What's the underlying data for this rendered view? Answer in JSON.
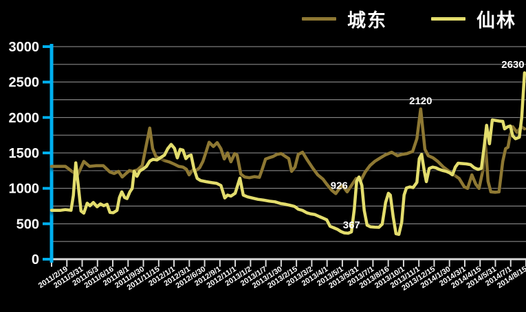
{
  "style": {
    "background": "#000000",
    "text_color": "#ffffff",
    "y_axis_color": "#00b0f0",
    "x_axis_color": "#d9d9d9",
    "gridline_color": "#9a9a9a"
  },
  "chart_data": {
    "type": "line",
    "title": "",
    "xlabel": "",
    "ylabel": "",
    "ylim": [
      0,
      3000
    ],
    "ytick_interval": 500,
    "grid_interval": 250,
    "grid": true,
    "legend_position": "top-right",
    "y_tick_labels": [
      "0",
      "500",
      "1000",
      "1500",
      "2000",
      "2500",
      "3000"
    ],
    "x_labels": [
      "2011/2/19",
      "2011/3/31",
      "2011/5/3",
      "2011/6/16",
      "2011/8/1",
      "2011/9/30",
      "2011/11/15",
      "2012/1/1",
      "2012/3/1",
      "2012/6/30",
      "2012/9/1",
      "2012/11/1",
      "2013/1/2",
      "2013/1/7",
      "2013/1/30",
      "2013/2/15",
      "2013/3/2",
      "2013/4/1",
      "2013/5/1",
      "2013/5/31",
      "2013/7/1",
      "2013/8/16",
      "2013/10/1",
      "2013/11/1",
      "2013/12/15",
      "2014/1/30",
      "2014/3/1",
      "2014/4/15",
      "2014/5/31",
      "2014/7/1",
      "2014/8/15"
    ],
    "series": [
      {
        "name": "城东",
        "color": "#8e7833",
        "points": [
          [
            0.0,
            1310
          ],
          [
            0.029,
            1310
          ],
          [
            0.043,
            1240
          ],
          [
            0.055,
            1190
          ],
          [
            0.068,
            1380
          ],
          [
            0.08,
            1310
          ],
          [
            0.094,
            1320
          ],
          [
            0.109,
            1320
          ],
          [
            0.123,
            1230
          ],
          [
            0.132,
            1210
          ],
          [
            0.141,
            1240
          ],
          [
            0.149,
            1160
          ],
          [
            0.157,
            1210
          ],
          [
            0.164,
            1250
          ],
          [
            0.171,
            1240
          ],
          [
            0.181,
            1260
          ],
          [
            0.191,
            1320
          ],
          [
            0.2,
            1620
          ],
          [
            0.207,
            1850
          ],
          [
            0.213,
            1560
          ],
          [
            0.22,
            1450
          ],
          [
            0.229,
            1420
          ],
          [
            0.239,
            1390
          ],
          [
            0.249,
            1370
          ],
          [
            0.259,
            1340
          ],
          [
            0.268,
            1310
          ],
          [
            0.277,
            1300
          ],
          [
            0.284,
            1270
          ],
          [
            0.29,
            1190
          ],
          [
            0.297,
            1255
          ],
          [
            0.304,
            1250
          ],
          [
            0.312,
            1290
          ],
          [
            0.319,
            1380
          ],
          [
            0.326,
            1520
          ],
          [
            0.332,
            1650
          ],
          [
            0.341,
            1590
          ],
          [
            0.349,
            1645
          ],
          [
            0.357,
            1560
          ],
          [
            0.364,
            1415
          ],
          [
            0.371,
            1500
          ],
          [
            0.378,
            1375
          ],
          [
            0.386,
            1490
          ],
          [
            0.391,
            1470
          ],
          [
            0.399,
            1200
          ],
          [
            0.407,
            1160
          ],
          [
            0.417,
            1150
          ],
          [
            0.428,
            1165
          ],
          [
            0.438,
            1155
          ],
          [
            0.443,
            1250
          ],
          [
            0.451,
            1413
          ],
          [
            0.458,
            1430
          ],
          [
            0.467,
            1450
          ],
          [
            0.475,
            1480
          ],
          [
            0.484,
            1490
          ],
          [
            0.493,
            1450
          ],
          [
            0.5,
            1420
          ],
          [
            0.506,
            1240
          ],
          [
            0.513,
            1300
          ],
          [
            0.52,
            1480
          ],
          [
            0.529,
            1510
          ],
          [
            0.539,
            1400
          ],
          [
            0.551,
            1280
          ],
          [
            0.561,
            1190
          ],
          [
            0.572,
            1130
          ],
          [
            0.581,
            1050
          ],
          [
            0.591,
            970
          ],
          [
            0.599,
            926
          ],
          [
            0.607,
            1000
          ],
          [
            0.613,
            1040
          ],
          [
            0.623,
            950
          ],
          [
            0.633,
            1050
          ],
          [
            0.642,
            1140
          ],
          [
            0.651,
            1100
          ],
          [
            0.661,
            1230
          ],
          [
            0.671,
            1320
          ],
          [
            0.681,
            1380
          ],
          [
            0.693,
            1430
          ],
          [
            0.703,
            1470
          ],
          [
            0.717,
            1510
          ],
          [
            0.729,
            1460
          ],
          [
            0.739,
            1480
          ],
          [
            0.749,
            1490
          ],
          [
            0.761,
            1520
          ],
          [
            0.77,
            1700
          ],
          [
            0.778,
            2120
          ],
          [
            0.787,
            1550
          ],
          [
            0.794,
            1460
          ],
          [
            0.804,
            1430
          ],
          [
            0.814,
            1380
          ],
          [
            0.826,
            1300
          ],
          [
            0.836,
            1250
          ],
          [
            0.848,
            1190
          ],
          [
            0.859,
            1140
          ],
          [
            0.87,
            1020
          ],
          [
            0.877,
            1000
          ],
          [
            0.886,
            1190
          ],
          [
            0.894,
            1060
          ],
          [
            0.901,
            1000
          ],
          [
            0.909,
            1250
          ],
          [
            0.914,
            1670
          ],
          [
            0.92,
            1100
          ],
          [
            0.926,
            950
          ],
          [
            0.935,
            945
          ],
          [
            0.943,
            950
          ],
          [
            0.951,
            1380
          ],
          [
            0.957,
            1560
          ],
          [
            0.962,
            1580
          ],
          [
            0.967,
            1760
          ],
          [
            0.972,
            1870
          ],
          [
            0.981,
            1790
          ],
          [
            0.99,
            1870
          ],
          [
            0.997,
            1840
          ]
        ]
      },
      {
        "name": "仙林",
        "color": "#e3dd6d",
        "points": [
          [
            0.0,
            690
          ],
          [
            0.019,
            690
          ],
          [
            0.029,
            700
          ],
          [
            0.041,
            690
          ],
          [
            0.046,
            900
          ],
          [
            0.051,
            1360
          ],
          [
            0.057,
            1000
          ],
          [
            0.062,
            680
          ],
          [
            0.068,
            650
          ],
          [
            0.075,
            790
          ],
          [
            0.081,
            755
          ],
          [
            0.088,
            800
          ],
          [
            0.096,
            740
          ],
          [
            0.103,
            780
          ],
          [
            0.11,
            755
          ],
          [
            0.117,
            775
          ],
          [
            0.123,
            660
          ],
          [
            0.13,
            655
          ],
          [
            0.138,
            690
          ],
          [
            0.143,
            870
          ],
          [
            0.148,
            950
          ],
          [
            0.154,
            870
          ],
          [
            0.159,
            855
          ],
          [
            0.165,
            950
          ],
          [
            0.17,
            1000
          ],
          [
            0.174,
            1240
          ],
          [
            0.18,
            1170
          ],
          [
            0.186,
            1245
          ],
          [
            0.193,
            1275
          ],
          [
            0.2,
            1310
          ],
          [
            0.207,
            1385
          ],
          [
            0.214,
            1410
          ],
          [
            0.222,
            1400
          ],
          [
            0.229,
            1430
          ],
          [
            0.238,
            1470
          ],
          [
            0.245,
            1560
          ],
          [
            0.252,
            1620
          ],
          [
            0.259,
            1565
          ],
          [
            0.265,
            1430
          ],
          [
            0.271,
            1550
          ],
          [
            0.277,
            1540
          ],
          [
            0.283,
            1420
          ],
          [
            0.288,
            1455
          ],
          [
            0.294,
            1470
          ],
          [
            0.3,
            1280
          ],
          [
            0.307,
            1140
          ],
          [
            0.314,
            1110
          ],
          [
            0.326,
            1094
          ],
          [
            0.338,
            1080
          ],
          [
            0.348,
            1070
          ],
          [
            0.357,
            1040
          ],
          [
            0.365,
            865
          ],
          [
            0.371,
            905
          ],
          [
            0.378,
            890
          ],
          [
            0.387,
            930
          ],
          [
            0.397,
            1145
          ],
          [
            0.404,
            905
          ],
          [
            0.413,
            880
          ],
          [
            0.425,
            860
          ],
          [
            0.435,
            845
          ],
          [
            0.446,
            835
          ],
          [
            0.459,
            820
          ],
          [
            0.471,
            810
          ],
          [
            0.483,
            785
          ],
          [
            0.493,
            775
          ],
          [
            0.503,
            760
          ],
          [
            0.512,
            745
          ],
          [
            0.52,
            705
          ],
          [
            0.529,
            688
          ],
          [
            0.538,
            655
          ],
          [
            0.546,
            640
          ],
          [
            0.555,
            630
          ],
          [
            0.565,
            600
          ],
          [
            0.572,
            580
          ],
          [
            0.58,
            555
          ],
          [
            0.587,
            465
          ],
          [
            0.596,
            440
          ],
          [
            0.603,
            420
          ],
          [
            0.61,
            390
          ],
          [
            0.617,
            372
          ],
          [
            0.625,
            367
          ],
          [
            0.632,
            385
          ],
          [
            0.638,
            700
          ],
          [
            0.643,
            1100
          ],
          [
            0.648,
            1160
          ],
          [
            0.654,
            1040
          ],
          [
            0.659,
            690
          ],
          [
            0.665,
            480
          ],
          [
            0.672,
            458
          ],
          [
            0.681,
            452
          ],
          [
            0.69,
            450
          ],
          [
            0.697,
            495
          ],
          [
            0.704,
            800
          ],
          [
            0.71,
            930
          ],
          [
            0.714,
            905
          ],
          [
            0.72,
            600
          ],
          [
            0.726,
            360
          ],
          [
            0.732,
            350
          ],
          [
            0.738,
            520
          ],
          [
            0.743,
            905
          ],
          [
            0.748,
            1005
          ],
          [
            0.755,
            1020
          ],
          [
            0.762,
            1010
          ],
          [
            0.77,
            1085
          ],
          [
            0.775,
            1420
          ],
          [
            0.78,
            1480
          ],
          [
            0.786,
            1230
          ],
          [
            0.79,
            1095
          ],
          [
            0.796,
            1280
          ],
          [
            0.803,
            1300
          ],
          [
            0.81,
            1290
          ],
          [
            0.817,
            1268
          ],
          [
            0.825,
            1250
          ],
          [
            0.832,
            1240
          ],
          [
            0.839,
            1218
          ],
          [
            0.845,
            1190
          ],
          [
            0.851,
            1300
          ],
          [
            0.857,
            1355
          ],
          [
            0.865,
            1350
          ],
          [
            0.874,
            1345
          ],
          [
            0.883,
            1335
          ],
          [
            0.891,
            1290
          ],
          [
            0.899,
            1268
          ],
          [
            0.906,
            1282
          ],
          [
            0.912,
            1600
          ],
          [
            0.917,
            1890
          ],
          [
            0.923,
            1630
          ],
          [
            0.929,
            1965
          ],
          [
            0.936,
            1958
          ],
          [
            0.943,
            1950
          ],
          [
            0.951,
            1945
          ],
          [
            0.955,
            1840
          ],
          [
            0.961,
            1868
          ],
          [
            0.967,
            1880
          ],
          [
            0.972,
            1740
          ],
          [
            0.978,
            1700
          ],
          [
            0.986,
            1722
          ],
          [
            0.991,
            2000
          ],
          [
            0.997,
            2630
          ]
        ]
      }
    ],
    "annotations": [
      {
        "text": "2120",
        "xf": 0.778,
        "value": 2120,
        "dx": 0
      },
      {
        "text": "926",
        "xf": 0.599,
        "value": 926,
        "dx": 5
      },
      {
        "text": "367",
        "xf": 0.625,
        "value": 367,
        "dx": 5
      },
      {
        "text": "2630",
        "xf": 0.997,
        "value": 2630,
        "dx": -17
      }
    ]
  }
}
